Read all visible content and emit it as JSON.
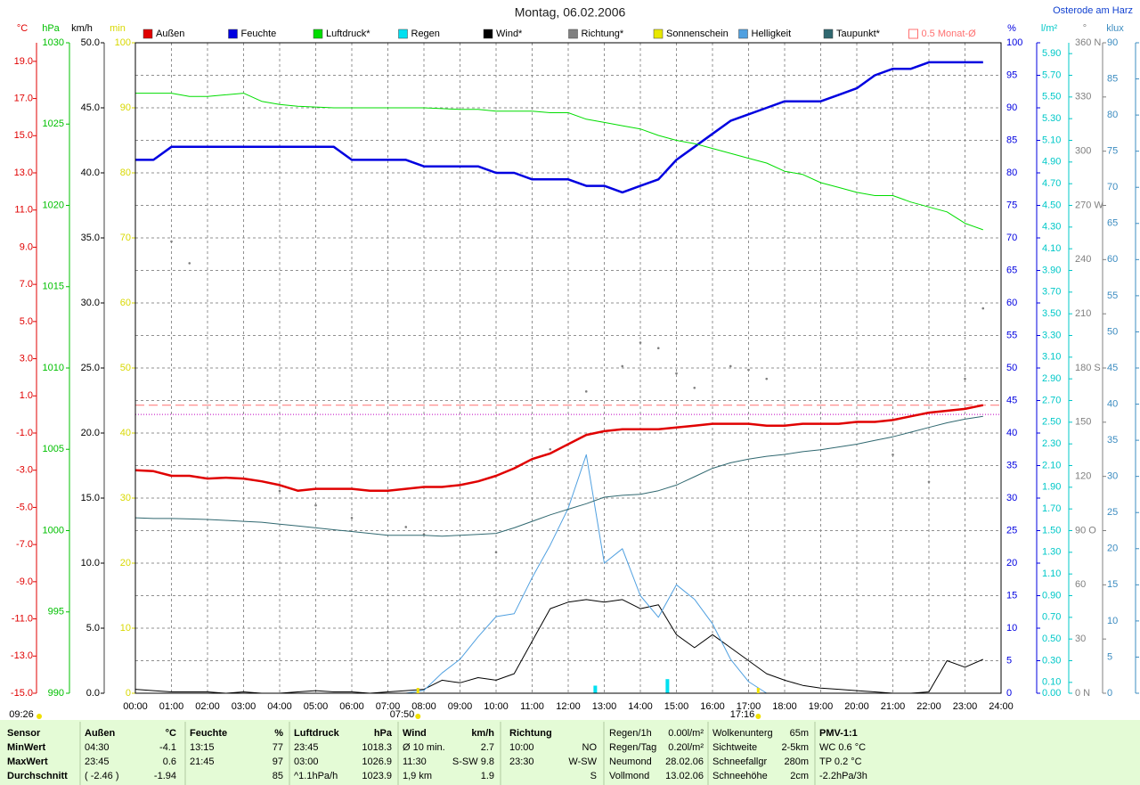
{
  "chart_data": {
    "type": "line",
    "title": "Montag, 06.02.2006",
    "location": "Osterode am Harz",
    "grid": true,
    "xlim": [
      0,
      24
    ],
    "xticks": [
      {
        "value": 0,
        "label": "00:00"
      },
      {
        "value": 1,
        "label": "01:00"
      },
      {
        "value": 2,
        "label": "02:00"
      },
      {
        "value": 3,
        "label": "03:00"
      },
      {
        "value": 4,
        "label": "04:00"
      },
      {
        "value": 5,
        "label": "05:00"
      },
      {
        "value": 6,
        "label": "06:00"
      },
      {
        "value": 7,
        "label": "07:00"
      },
      {
        "value": 8,
        "label": "08:00"
      },
      {
        "value": 9,
        "label": "09:00"
      },
      {
        "value": 10,
        "label": "10:00"
      },
      {
        "value": 11,
        "label": "11:00"
      },
      {
        "value": 12,
        "label": "12:00"
      },
      {
        "value": 13,
        "label": "13:00"
      },
      {
        "value": 14,
        "label": "14:00"
      },
      {
        "value": 15,
        "label": "15:00"
      },
      {
        "value": 16,
        "label": "16:00"
      },
      {
        "value": 17,
        "label": "17:00"
      },
      {
        "value": 18,
        "label": "18:00"
      },
      {
        "value": 19,
        "label": "19:00"
      },
      {
        "value": 20,
        "label": "20:00"
      },
      {
        "value": 21,
        "label": "21:00"
      },
      {
        "value": 22,
        "label": "22:00"
      },
      {
        "value": 23,
        "label": "23:00"
      },
      {
        "value": 24,
        "label": "24:00"
      }
    ],
    "axes": [
      {
        "label": "°C",
        "color": "#e00000",
        "ylim": [
          -15,
          20
        ],
        "yticks": [
          {
            "value": -15,
            "label": "-15.0"
          },
          {
            "value": -13,
            "label": "-13.0"
          },
          {
            "value": -11,
            "label": "-11.0"
          },
          {
            "value": -9,
            "label": "-9.0"
          },
          {
            "value": -7,
            "label": "-7.0"
          },
          {
            "value": -5,
            "label": "-5.0"
          },
          {
            "value": -3,
            "label": "-3.0"
          },
          {
            "value": -1,
            "label": "-1.0"
          },
          {
            "value": 1,
            "label": "1.0"
          },
          {
            "value": 3,
            "label": "3.0"
          },
          {
            "value": 5,
            "label": "5.0"
          },
          {
            "value": 7,
            "label": "7.0"
          },
          {
            "value": 9,
            "label": "9.0"
          },
          {
            "value": 11,
            "label": "11.0"
          },
          {
            "value": 13,
            "label": "13.0"
          },
          {
            "value": 15,
            "label": "15.0"
          },
          {
            "value": 17,
            "label": "17.0"
          },
          {
            "value": 19,
            "label": "19.0"
          }
        ]
      },
      {
        "label": "hPa",
        "color": "#00c000",
        "ylim": [
          990,
          1030
        ],
        "yticks": [
          990,
          995,
          1000,
          1005,
          1010,
          1015,
          1020,
          1025,
          1030
        ]
      },
      {
        "label": "km/h",
        "color": "#000000",
        "ylim": [
          0,
          50
        ],
        "yticks": [
          {
            "value": 0,
            "label": "0.0"
          },
          {
            "value": 5,
            "label": "5.0"
          },
          {
            "value": 10,
            "label": "10.0"
          },
          {
            "value": 15,
            "label": "15.0"
          },
          {
            "value": 20,
            "label": "20.0"
          },
          {
            "value": 25,
            "label": "25.0"
          },
          {
            "value": 30,
            "label": "30.0"
          },
          {
            "value": 35,
            "label": "35.0"
          },
          {
            "value": 40,
            "label": "40.0"
          },
          {
            "value": 45,
            "label": "45.0"
          },
          {
            "value": 50,
            "label": "50.0"
          }
        ]
      },
      {
        "label": "min",
        "color": "#d8d800",
        "ylim": [
          0,
          100
        ],
        "yticks": [
          0,
          10,
          20,
          30,
          40,
          50,
          60,
          70,
          80,
          90,
          100
        ]
      },
      {
        "label": "%",
        "color": "#0000e0",
        "ylim": [
          0,
          100
        ],
        "yticks": [
          0,
          5,
          10,
          15,
          20,
          25,
          30,
          35,
          40,
          45,
          50,
          55,
          60,
          65,
          70,
          75,
          80,
          85,
          90,
          95,
          100
        ]
      },
      {
        "label": "l/m²",
        "color": "#00c8c8",
        "ylim": [
          0,
          6
        ],
        "yticks": [
          {
            "value": 0,
            "label": "0.00"
          },
          {
            "value": 0.1,
            "label": "0.10"
          },
          {
            "value": 0.3,
            "label": "0.30"
          },
          {
            "value": 0.5,
            "label": "0.50"
          },
          {
            "value": 0.7,
            "label": "0.70"
          },
          {
            "value": 0.9,
            "label": "0.90"
          },
          {
            "value": 1.1,
            "label": "1.10"
          },
          {
            "value": 1.3,
            "label": "1.30"
          },
          {
            "value": 1.5,
            "label": "1.50"
          },
          {
            "value": 1.7,
            "label": "1.70"
          },
          {
            "value": 1.9,
            "label": "1.90"
          },
          {
            "value": 2.1,
            "label": "2.10"
          },
          {
            "value": 2.3,
            "label": "2.30"
          },
          {
            "value": 2.5,
            "label": "2.50"
          },
          {
            "value": 2.7,
            "label": "2.70"
          },
          {
            "value": 2.9,
            "label": "2.90"
          },
          {
            "value": 3.1,
            "label": "3.10"
          },
          {
            "value": 3.3,
            "label": "3.30"
          },
          {
            "value": 3.5,
            "label": "3.50"
          },
          {
            "value": 3.7,
            "label": "3.70"
          },
          {
            "value": 3.9,
            "label": "3.90"
          },
          {
            "value": 4.1,
            "label": "4.10"
          },
          {
            "value": 4.3,
            "label": "4.30"
          },
          {
            "value": 4.5,
            "label": "4.50"
          },
          {
            "value": 4.7,
            "label": "4.70"
          },
          {
            "value": 4.9,
            "label": "4.90"
          },
          {
            "value": 5.1,
            "label": "5.10"
          },
          {
            "value": 5.3,
            "label": "5.30"
          },
          {
            "value": 5.5,
            "label": "5.50"
          },
          {
            "value": 5.7,
            "label": "5.70"
          },
          {
            "value": 5.9,
            "label": "5.90"
          }
        ]
      },
      {
        "label": "°",
        "color": "#808080",
        "ylim": [
          0,
          360
        ],
        "yticks": [
          {
            "value": 0,
            "label": "0 N"
          },
          30,
          60,
          {
            "value": 90,
            "label": "90 O"
          },
          120,
          150,
          {
            "value": 180,
            "label": "180 S"
          },
          210,
          240,
          {
            "value": 270,
            "label": "270 W"
          },
          300,
          330,
          {
            "value": 360,
            "label": "360 N"
          }
        ]
      },
      {
        "label": "klux",
        "color": "#3c8cc0",
        "ylim": [
          0,
          90
        ],
        "yticks": [
          0,
          5,
          10,
          15,
          20,
          25,
          30,
          35,
          40,
          45,
          50,
          55,
          60,
          65,
          70,
          75,
          80,
          85,
          90
        ]
      }
    ],
    "x": [
      0,
      0.5,
      1,
      1.5,
      2,
      2.5,
      3,
      3.5,
      4,
      4.5,
      5,
      5.5,
      6,
      6.5,
      7,
      7.5,
      8,
      8.5,
      9,
      9.5,
      10,
      10.5,
      11,
      11.5,
      12,
      12.5,
      13,
      13.5,
      14,
      14.5,
      15,
      15.5,
      16,
      16.5,
      17,
      17.5,
      18,
      18.5,
      19,
      19.5,
      20,
      20.5,
      21,
      21.5,
      22,
      22.5,
      23,
      23.5
    ],
    "series": [
      {
        "name": "Außen",
        "color": "#e00000",
        "axis": "°C",
        "line_width": 2.5,
        "values": [
          -3.0,
          -3.05,
          -3.3,
          -3.3,
          -3.45,
          -3.4,
          -3.45,
          -3.6,
          -3.8,
          -4.1,
          -4.0,
          -4.0,
          -4.0,
          -4.1,
          -4.1,
          -4.0,
          -3.9,
          -3.9,
          -3.8,
          -3.6,
          -3.3,
          -2.9,
          -2.4,
          -2.1,
          -1.6,
          -1.1,
          -0.9,
          -0.8,
          -0.8,
          -0.8,
          -0.7,
          -0.6,
          -0.5,
          -0.5,
          -0.5,
          -0.6,
          -0.6,
          -0.5,
          -0.5,
          -0.5,
          -0.4,
          -0.4,
          -0.3,
          -0.1,
          0.1,
          0.2,
          0.3,
          0.5
        ]
      },
      {
        "name": "Feuchte",
        "color": "#0000e0",
        "axis": "%",
        "line_width": 2.5,
        "values": [
          82,
          82,
          84,
          84,
          84,
          84,
          84,
          84,
          84,
          84,
          84,
          84,
          82,
          82,
          82,
          82,
          81,
          81,
          81,
          81,
          80,
          80,
          79,
          79,
          79,
          78,
          78,
          77,
          78,
          79,
          82,
          84,
          86,
          88,
          89,
          90,
          91,
          91,
          91,
          92,
          93,
          95,
          96,
          96,
          97,
          97,
          97,
          97
        ]
      },
      {
        "name": "Luftdruck*",
        "color": "#00dd00",
        "axis": "hPa",
        "line_width": 1,
        "values": [
          1026.9,
          1026.9,
          1026.9,
          1026.7,
          1026.7,
          1026.8,
          1026.9,
          1026.4,
          1026.2,
          1026.1,
          1026.05,
          1026.0,
          1026.0,
          1026.0,
          1026.0,
          1026.0,
          1026.0,
          1025.95,
          1025.9,
          1025.9,
          1025.8,
          1025.8,
          1025.8,
          1025.7,
          1025.7,
          1025.3,
          1025.1,
          1024.9,
          1024.7,
          1024.3,
          1024.0,
          1023.8,
          1023.5,
          1023.2,
          1022.9,
          1022.6,
          1022.1,
          1021.9,
          1021.4,
          1021.1,
          1020.8,
          1020.6,
          1020.6,
          1020.2,
          1019.9,
          1019.6,
          1018.9,
          1018.5
        ]
      },
      {
        "name": "Regen",
        "color": "#00e0f0",
        "axis": "l/m²",
        "style": "bars",
        "x": [
          12.75,
          14.75
        ],
        "values": [
          0.07,
          0.13
        ]
      },
      {
        "name": "Wind*",
        "color": "#000000",
        "axis": "km/h",
        "line_width": 1,
        "values": [
          0.3,
          0.2,
          0.1,
          0.1,
          0.1,
          0.0,
          0.1,
          0.0,
          0.0,
          0.1,
          0.2,
          0.1,
          0.1,
          0.0,
          0.1,
          0.2,
          0.3,
          1.0,
          0.8,
          1.2,
          1.0,
          1.5,
          4.0,
          6.5,
          7.0,
          7.2,
          7.0,
          7.2,
          6.5,
          6.8,
          4.5,
          3.5,
          4.5,
          3.5,
          2.5,
          1.5,
          1.0,
          0.6,
          0.4,
          0.3,
          0.2,
          0.1,
          0.0,
          0.0,
          0.1,
          2.5,
          2.0,
          2.6
        ]
      },
      {
        "name": "Richtung*",
        "color": "#808080",
        "axis": "°",
        "style": "dots",
        "values": [
          null,
          null,
          250,
          238,
          null,
          null,
          null,
          null,
          112,
          null,
          104,
          null,
          97,
          null,
          null,
          92,
          88,
          null,
          null,
          null,
          78,
          null,
          null,
          135,
          null,
          167,
          null,
          181,
          194,
          191,
          177,
          169,
          null,
          181,
          179,
          174,
          null,
          null,
          null,
          null,
          null,
          null,
          132,
          null,
          117,
          null,
          174,
          213
        ]
      },
      {
        "name": "Sonnenschein",
        "color": "#e8e800"
      },
      {
        "name": "Helligkeit",
        "color": "#50a0e0",
        "axis": "klux",
        "line_width": 1,
        "values": [
          0,
          0,
          0,
          0,
          0,
          0,
          0,
          0,
          0,
          0,
          0,
          0,
          0,
          0,
          0,
          0,
          0.4,
          2.8,
          4.7,
          7.8,
          10.6,
          11,
          16,
          20.5,
          25.6,
          33,
          18,
          20,
          13.5,
          10.5,
          15,
          13,
          9.6,
          4.7,
          1.6,
          0,
          0,
          0,
          0,
          0,
          0,
          0,
          0,
          0,
          0,
          0,
          0,
          0
        ]
      },
      {
        "name": "Taupunkt*",
        "color": "#306870",
        "axis": "°C",
        "line_width": 1,
        "values": [
          -5.56,
          -5.6,
          -5.6,
          -5.62,
          -5.65,
          -5.7,
          -5.75,
          -5.8,
          -5.9,
          -6.0,
          -6.1,
          -6.2,
          -6.3,
          -6.4,
          -6.5,
          -6.5,
          -6.5,
          -6.55,
          -6.5,
          -6.45,
          -6.4,
          -6.1,
          -5.75,
          -5.4,
          -5.1,
          -4.8,
          -4.45,
          -4.35,
          -4.3,
          -4.1,
          -3.8,
          -3.35,
          -2.9,
          -2.6,
          -2.4,
          -2.25,
          -2.15,
          -2.0,
          -1.9,
          -1.75,
          -1.6,
          -1.4,
          -1.2,
          -0.95,
          -0.7,
          -0.45,
          -0.25,
          -0.1
        ]
      }
    ],
    "reference_lines": [
      {
        "name": "0.5 Monat-Ø",
        "value": 0.5,
        "axis": "°C",
        "color": "#ff7070",
        "dash": "dashed"
      },
      {
        "value": 0,
        "axis": "°C",
        "color": "#c000c0",
        "dash": "dotted"
      }
    ],
    "sun": {
      "duration": "09:26",
      "rise": "07:50",
      "set": "17:16",
      "color": "#f0e000"
    },
    "table": {
      "row_labels": [
        "Sensor",
        "MinWert",
        "MaxWert",
        "Durchschnitt"
      ],
      "groups": [
        {
          "header": true,
          "cells": [
            [
              "Außen",
              "°C"
            ],
            [
              "04:30",
              "-4.1"
            ],
            [
              "23:45",
              "0.6"
            ],
            [
              "( -2.46 )",
              "-1.94"
            ]
          ]
        },
        {
          "header": true,
          "cells": [
            [
              "Feuchte",
              "%"
            ],
            [
              "13:15",
              "77"
            ],
            [
              "21:45",
              "97"
            ],
            [
              null,
              "85"
            ]
          ]
        },
        {
          "header": true,
          "cells": [
            [
              "Luftdruck",
              "hPa"
            ],
            [
              "23:45",
              "1018.3"
            ],
            [
              "03:00",
              "1026.9"
            ],
            [
              "^1.1hPa/h",
              "1023.9"
            ]
          ]
        },
        {
          "header": true,
          "cells": [
            [
              "Wind",
              "km/h"
            ],
            [
              "Ø 10 min.",
              "2.7"
            ],
            [
              "11:30",
              "S-SW 9.8"
            ],
            [
              "1,9 km",
              "1.9"
            ]
          ]
        },
        {
          "header": true,
          "cells": [
            [
              "Richtung",
              null
            ],
            [
              "10:00",
              "NO"
            ],
            [
              "23:30",
              "W-SW"
            ],
            [
              null,
              "S"
            ]
          ]
        },
        {
          "header": false,
          "cells": [
            [
              "Regen/1h",
              "0.00l/m²"
            ],
            [
              "Regen/Tag",
              "0.20l/m²"
            ],
            [
              "Neumond",
              "28.02.06"
            ],
            [
              "Vollmond",
              "13.02.06"
            ]
          ]
        },
        {
          "header": false,
          "cells": [
            [
              "Wolkenunterg",
              "65m"
            ],
            [
              "Sichtweite",
              "2-5km"
            ],
            [
              "Schneefallgr",
              "280m"
            ],
            [
              "Schneehöhe",
              "2cm"
            ]
          ]
        },
        {
          "header": true,
          "cells": [
            [
              "PMV-1:1",
              null
            ],
            [
              "WC 0.6 °C",
              null
            ],
            [
              "TP 0.2 °C",
              null
            ],
            [
              "-2.2hPa/3h",
              null
            ]
          ]
        }
      ]
    }
  }
}
